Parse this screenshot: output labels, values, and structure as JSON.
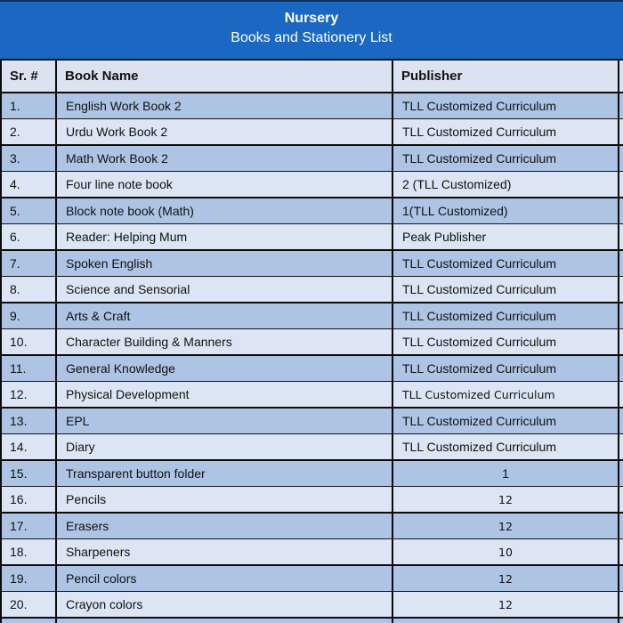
{
  "header": {
    "title": "Nursery",
    "subtitle": "Books and Stationery List"
  },
  "colors": {
    "banner_bg": "#1A68C2",
    "banner_top_border": "#12325F",
    "banner_text": "#FFFFFF",
    "header_row_bg": "#DCE3F0",
    "row_dark_bg": "#AEC4E4",
    "row_light_bg": "#DCE5F4",
    "grid_border": "#0B0B0B",
    "text": "#111111"
  },
  "table": {
    "columns": [
      "Sr. #",
      "Book Name",
      "Publisher"
    ],
    "rows": [
      {
        "sr": "1.",
        "book": "English Work Book 2",
        "publisher": "TLL Customized Curriculum"
      },
      {
        "sr": "2.",
        "book": "Urdu Work Book 2",
        "publisher": "TLL Customized Curriculum"
      },
      {
        "sr": "3.",
        "book": "Math Work Book 2",
        "publisher": "TLL Customized Curriculum"
      },
      {
        "sr": "4.",
        "book": "Four line note book",
        "publisher": "2 (TLL Customized)"
      },
      {
        "sr": "5.",
        "book": "Block note book (Math)",
        "publisher": "1(TLL Customized)"
      },
      {
        "sr": "6.",
        "book": "Reader: Helping Mum",
        "publisher": "Peak Publisher"
      },
      {
        "sr": "7.",
        "book": "Spoken English",
        "publisher": "TLL Customized Curriculum"
      },
      {
        "sr": "8.",
        "book": "Science and Sensorial",
        "publisher": "TLL Customized Curriculum"
      },
      {
        "sr": "9.",
        "book": "Arts & Craft",
        "publisher": "TLL Customized Curriculum"
      },
      {
        "sr": "10.",
        "book": "Character Building & Manners",
        "publisher": "TLL Customized Curriculum"
      },
      {
        "sr": "11.",
        "book": "General Knowledge",
        "publisher": "TLL Customized Curriculum"
      },
      {
        "sr": "12.",
        "book": "Physical Development",
        "publisher": "TLL Customized Curriculum",
        "publisher_style": "alt"
      },
      {
        "sr": "13.",
        "book": "EPL",
        "publisher": "TLL Customized Curriculum"
      },
      {
        "sr": "14.",
        "book": "Diary",
        "publisher": "TLL Customized Curriculum"
      },
      {
        "sr": "15.",
        "book": "Transparent  button folder",
        "publisher": "1",
        "publisher_align": "center"
      },
      {
        "sr": "16.",
        "book": "Pencils",
        "publisher": "12",
        "publisher_align": "center",
        "publisher_style": "alt"
      },
      {
        "sr": "17.",
        "book": "Erasers",
        "publisher": "12",
        "publisher_align": "center",
        "publisher_style": "alt"
      },
      {
        "sr": "18.",
        "book": "Sharpeners",
        "publisher": "10",
        "publisher_align": "center",
        "publisher_style": "alt"
      },
      {
        "sr": "19.",
        "book": "Pencil colors",
        "publisher": "12",
        "publisher_align": "center",
        "publisher_style": "alt"
      },
      {
        "sr": "20.",
        "book": "Crayon colors",
        "publisher": "12",
        "publisher_align": "center",
        "publisher_style": "alt"
      }
    ]
  }
}
